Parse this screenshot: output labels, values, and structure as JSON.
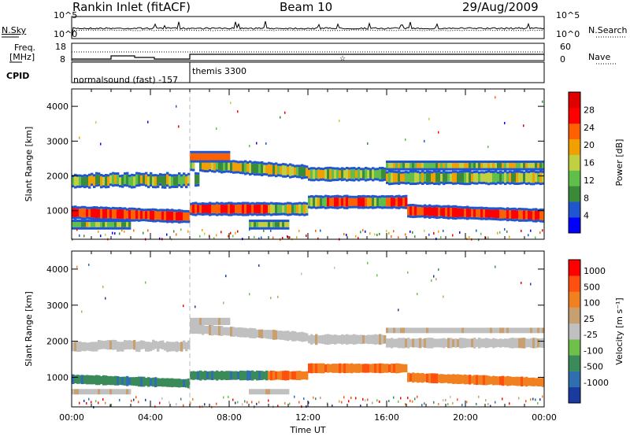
{
  "header": {
    "station": "Rankin Inlet (fitACF)",
    "beam": "Beam 10",
    "date": "29/Aug/2009"
  },
  "status_panels": {
    "nsky_label": "N.Sky",
    "nsky_ticks": [
      "10^5",
      "10^0"
    ],
    "nsearch_label": "N.Search",
    "nsearch_ticks": [
      "10^5",
      "10^0"
    ],
    "freq_label_1": "Freq.",
    "freq_label_2": "[MHz]",
    "freq_ticks": [
      "18",
      "8"
    ],
    "nave_label": "Nave",
    "nave_ticks": [
      "60",
      "0"
    ],
    "cpid_label": "CPID",
    "cpid_entries": [
      "normalsound (fast) -157",
      "themis 3300"
    ]
  },
  "chart_data": [
    {
      "type": "heatmap",
      "name": "power",
      "ylabel": "Slant Range [km]",
      "yticks": [
        "4000",
        "3000",
        "2000",
        "1000"
      ],
      "ylim": [
        180,
        4500
      ],
      "xlim": [
        0,
        24
      ],
      "colorbar_label": "Power [dB]",
      "colorbar_ticks": [
        "28",
        "24",
        "20",
        "16",
        "12",
        "8",
        "4"
      ],
      "colors": [
        "#0000ff",
        "#1f55d0",
        "#3a8a3a",
        "#5fbf4a",
        "#c0d040",
        "#f0a000",
        "#ff6000",
        "#ff0000",
        "#e00000"
      ]
    },
    {
      "type": "heatmap",
      "name": "velocity",
      "ylabel": "Slant Range [km]",
      "yticks": [
        "4000",
        "3000",
        "2000",
        "1000"
      ],
      "ylim": [
        180,
        4500
      ],
      "xlim": [
        0,
        24
      ],
      "xlabel": "Time UT",
      "xticks": [
        "00:00",
        "04:00",
        "08:00",
        "12:00",
        "16:00",
        "20:00",
        "00:00"
      ],
      "colorbar_label": "Velocity [m s⁻¹]",
      "colorbar_ticks": [
        "1000",
        "500",
        "100",
        "25",
        "-25",
        "-100",
        "-500",
        "-1000"
      ],
      "colors": [
        "#1a3aa0",
        "#2f6fb0",
        "#3a8a5a",
        "#6fc04a",
        "#c0c0c0",
        "#c8a070",
        "#f08020",
        "#ff5010",
        "#ff0000"
      ]
    }
  ]
}
